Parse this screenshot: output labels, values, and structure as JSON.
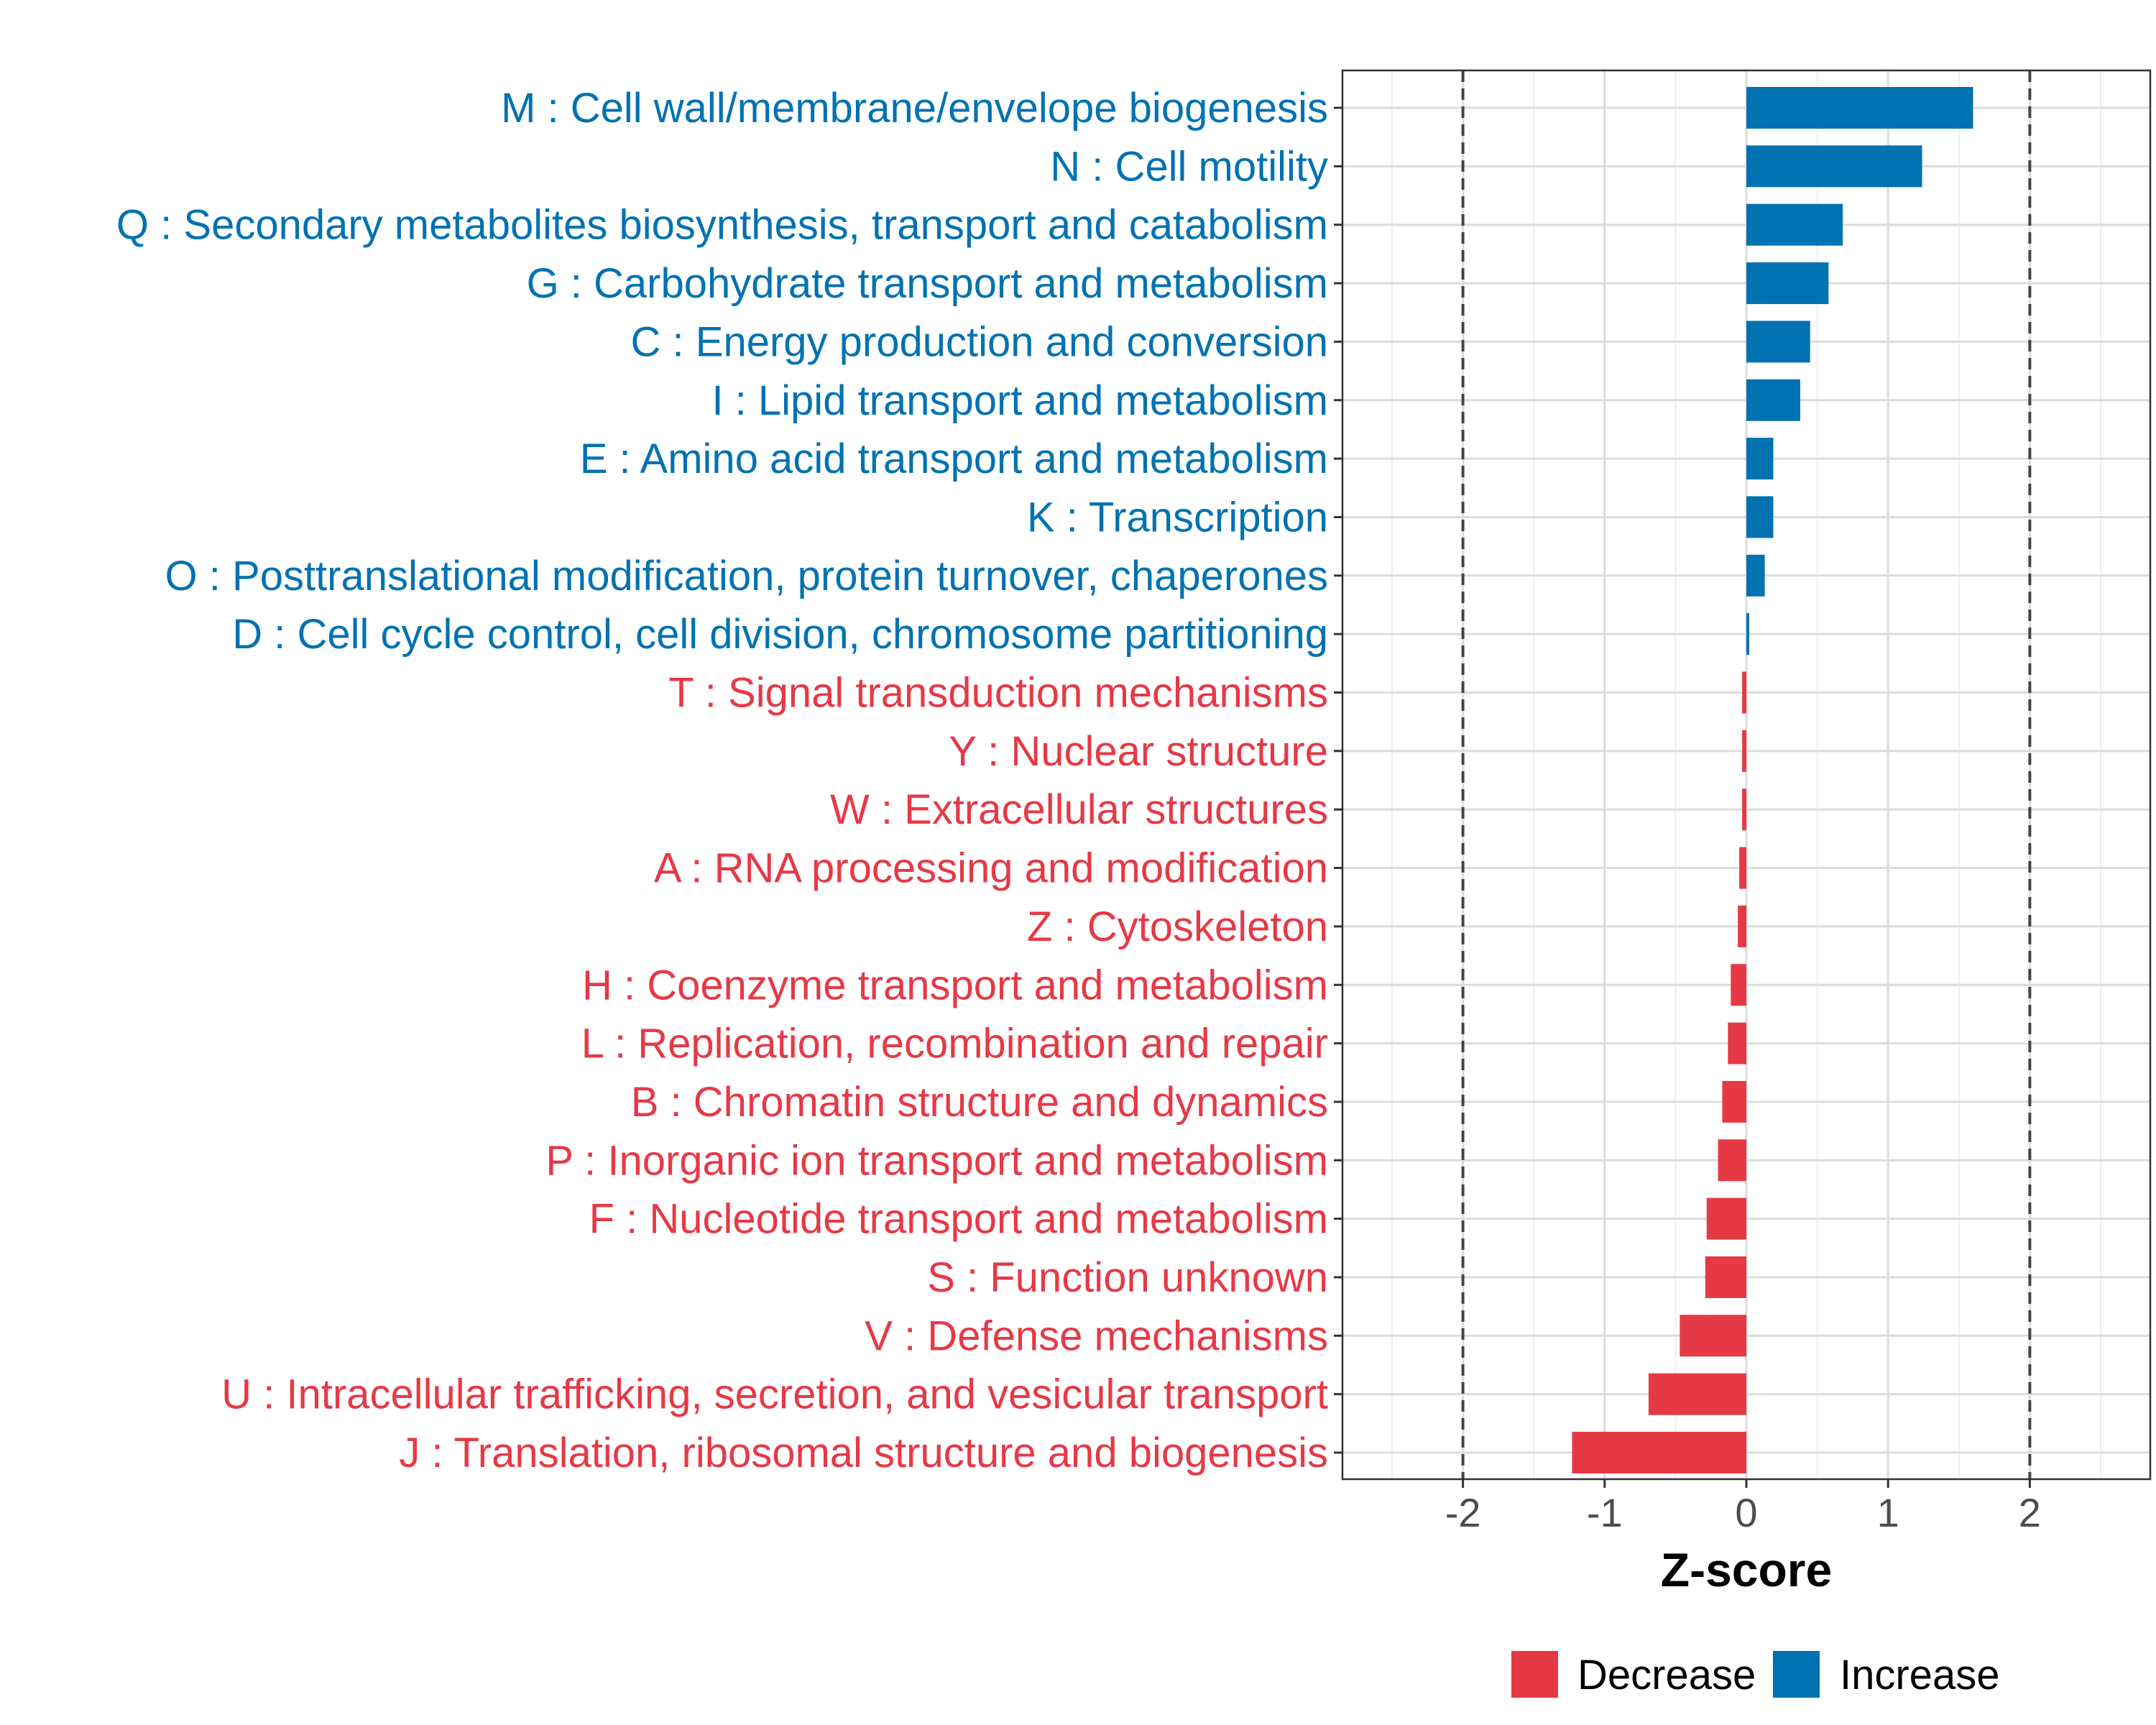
{
  "chart_data": {
    "type": "bar",
    "orientation": "horizontal",
    "title": "",
    "xlabel": "Z-score",
    "ylabel": "",
    "xlim": [
      -2.85,
      2.85
    ],
    "xticks": [
      -2,
      -1,
      0,
      1,
      2
    ],
    "xtick_labels": [
      "-2",
      "-1",
      "0",
      "1",
      "2"
    ],
    "reference_lines": [
      -2,
      2
    ],
    "grid": true,
    "legend_position": "bottom",
    "colors": {
      "Increase": "#0072B2",
      "Decrease": "#E63946"
    },
    "legend": [
      {
        "name": "Decrease",
        "color": "#E63946"
      },
      {
        "name": "Increase",
        "color": "#0072B2"
      }
    ],
    "categories": [
      "M : Cell wall/membrane/envelope biogenesis",
      "N : Cell motility",
      "Q : Secondary metabolites biosynthesis, transport and catabolism",
      "G : Carbohydrate transport and metabolism",
      "C : Energy production and conversion",
      "I : Lipid transport and metabolism",
      "E : Amino acid transport and metabolism",
      "K : Transcription",
      "O : Posttranslational modification, protein turnover, chaperones",
      "D : Cell cycle control, cell division, chromosome partitioning",
      "T : Signal transduction mechanisms",
      "Y : Nuclear structure",
      "W : Extracellular structures",
      "A : RNA processing and modification",
      "Z : Cytoskeleton",
      "H : Coenzyme transport and metabolism",
      "L : Replication, recombination and repair",
      "B : Chromatin structure and dynamics",
      "P : Inorganic ion transport and metabolism",
      "F : Nucleotide transport and metabolism",
      "S : Function unknown",
      "V : Defense mechanisms",
      "U : Intracellular trafficking, secretion, and vesicular transport",
      "J : Translation, ribosomal structure and biogenesis"
    ],
    "values": [
      1.6,
      1.24,
      0.68,
      0.58,
      0.45,
      0.38,
      0.19,
      0.19,
      0.13,
      0.02,
      -0.03,
      -0.03,
      -0.03,
      -0.05,
      -0.06,
      -0.11,
      -0.13,
      -0.17,
      -0.2,
      -0.28,
      -0.29,
      -0.47,
      -0.69,
      -1.23
    ],
    "groups": [
      "Increase",
      "Increase",
      "Increase",
      "Increase",
      "Increase",
      "Increase",
      "Increase",
      "Increase",
      "Increase",
      "Increase",
      "Decrease",
      "Decrease",
      "Decrease",
      "Decrease",
      "Decrease",
      "Decrease",
      "Decrease",
      "Decrease",
      "Decrease",
      "Decrease",
      "Decrease",
      "Decrease",
      "Decrease",
      "Decrease"
    ]
  }
}
